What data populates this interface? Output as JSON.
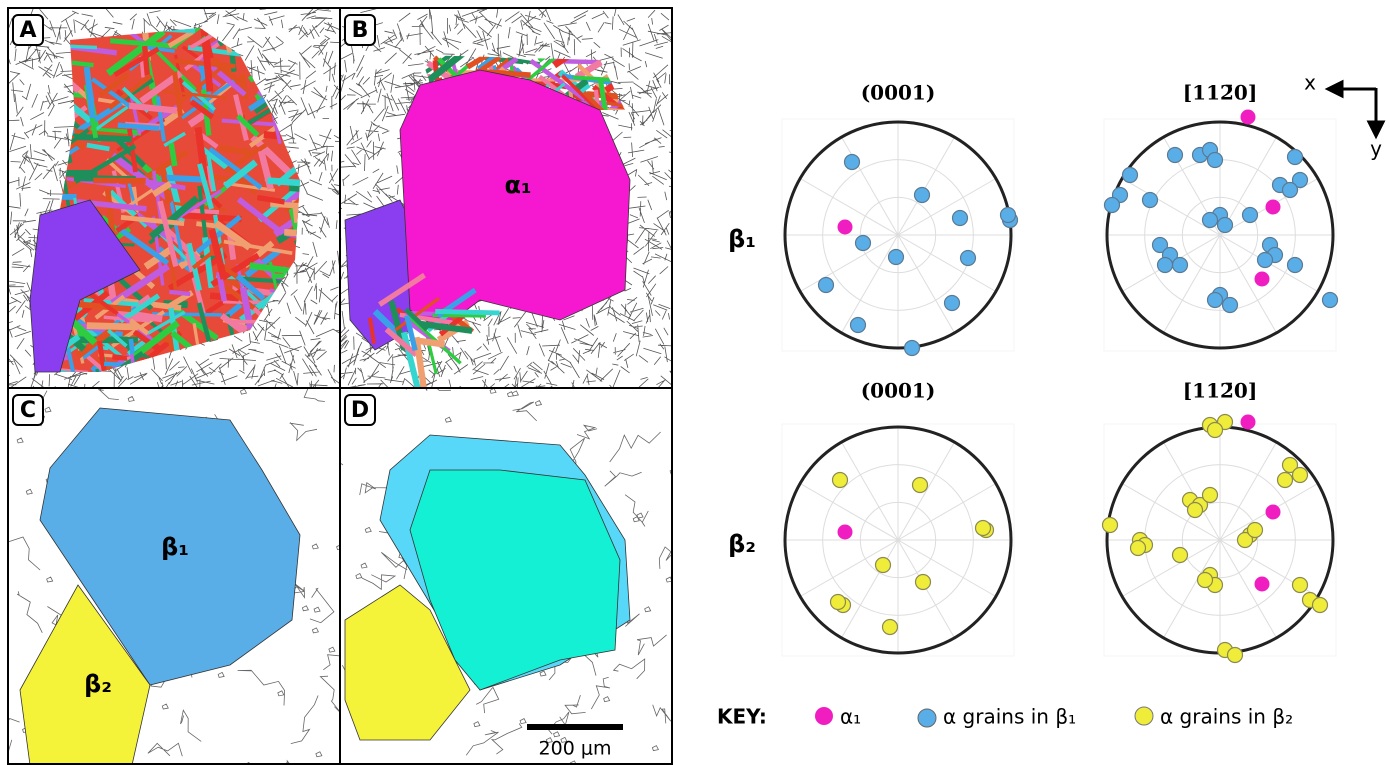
{
  "panels": [
    {
      "label": "A"
    },
    {
      "label": "B",
      "phase_label": "α₁"
    },
    {
      "label": "C",
      "grain_labels": [
        "β₁",
        "β₂"
      ]
    },
    {
      "label": "D",
      "scale_bar": "200 μm"
    }
  ],
  "pole_figures": {
    "columns": [
      "(0001)",
      "[112̄0]"
    ],
    "rows": [
      "β₁",
      "β₂"
    ],
    "axes": {
      "x": "x",
      "y": "y"
    }
  },
  "key": {
    "title": "KEY:",
    "items": [
      "α₁",
      "α grains in β₁",
      "α grains in β₂"
    ]
  }
}
